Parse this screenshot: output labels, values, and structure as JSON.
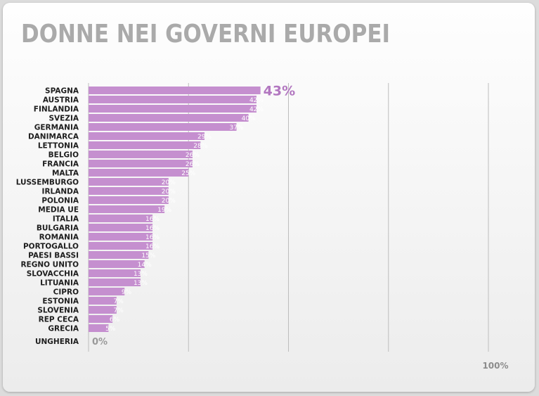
{
  "chart_data": {
    "type": "bar",
    "orientation": "horizontal",
    "title": "DONNE NEI GOVERNI EUROPEI",
    "categories": [
      "SPAGNA",
      "AUSTRIA",
      "FINLANDIA",
      "SVEZIA",
      "GERMANIA",
      "DANIMARCA",
      "LETTONIA",
      "BELGIO",
      "FRANCIA",
      "MALTA",
      "LUSSEMBURGO",
      "IRLANDA",
      "POLONIA",
      "MEDIA UE",
      "ITALIA",
      "BULGARIA",
      "ROMANIA",
      "PORTOGALLO",
      "PAESI BASSI",
      "REGNO UNITO",
      "SLOVACCHIA",
      "LITUANIA",
      "CIPRO",
      "ESTONIA",
      "SLOVENIA",
      "REP CECA",
      "GRECIA",
      "UNGHERIA"
    ],
    "values": [
      43,
      42,
      42,
      40,
      37,
      29,
      28,
      26,
      26,
      25,
      20,
      20,
      20,
      19,
      16,
      16,
      16,
      16,
      15,
      14,
      13,
      13,
      9,
      7,
      7,
      6,
      5,
      0
    ],
    "value_labels": [
      "43%",
      "42%",
      "42%",
      "40%",
      "37%",
      "29%",
      "28%",
      "26%",
      "26%",
      "25%",
      "20%",
      "20%",
      "20%",
      "19%",
      "16%",
      "16%",
      "16%",
      "16%",
      "15%",
      "14%",
      "13%",
      "13%",
      "9%",
      "7%",
      "7%",
      "6%",
      "5%",
      "0%"
    ],
    "xlim": [
      0,
      100
    ],
    "tick_labels": [
      "100%"
    ],
    "grid": true,
    "colors": {
      "bar": "#c58fcf",
      "highlight": "#b277c0",
      "grid": "#bdbdbd",
      "title": "#aaaaaa"
    }
  }
}
